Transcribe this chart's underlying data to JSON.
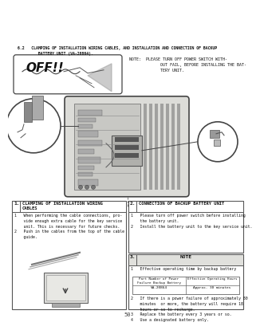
{
  "page_bg": "#f0f0ec",
  "title_line1": "6.2   CLAMPING OF INSTALLATION WIRING CABLES, AND INSTALLATION AND CONNECTION OF BACKUP",
  "title_line2": "         BATTERY UNIT (VA-20864).",
  "note_text": "NOTE:  PLEASE TURN OFF POWER SWITCH WITH-\n             OUT FAIL, BEFORE INSTALLING THE BAT-\n             TERY UNIT.",
  "off_text": "OFF!!",
  "s1_num": "1.",
  "s1_title": "CLAMPING OF INSTALLATION WIRING\nCABLES",
  "s1_body": "1   When performing the cable connections, pro-\n    vide enough extra cable for the key service\n    unit. This is necessary for future checks.\n2   Push in the cables from the top of the cable\n    guide.",
  "s2_num": "2.",
  "s2_title": "CONNECTION OF BACKUP BATTERY UNIT",
  "s2_body": "1   Please turn off power switch before installing\n    the battery unit.\n2   Install the battery unit to the key service unit.",
  "s3_num": "3.",
  "s3_title": "NOTE",
  "s3_item1": "1   Effective operating time by backup battery",
  "tbl_h1": "Part Number of Power\nFailure Backup Battery",
  "tbl_h2": "Effective Operating Hours",
  "tbl_v1": "VA-20864",
  "tbl_v2": "Approx. 30 minutes",
  "s3_items234": "2   If there is a power failure of approximately 80\n    minutes  or more, the battery will require 18\n    hours or so to recharge.\n3   Replace the battery every 3 years or so.\n4   Use a designated battery only.",
  "page_num": "50"
}
